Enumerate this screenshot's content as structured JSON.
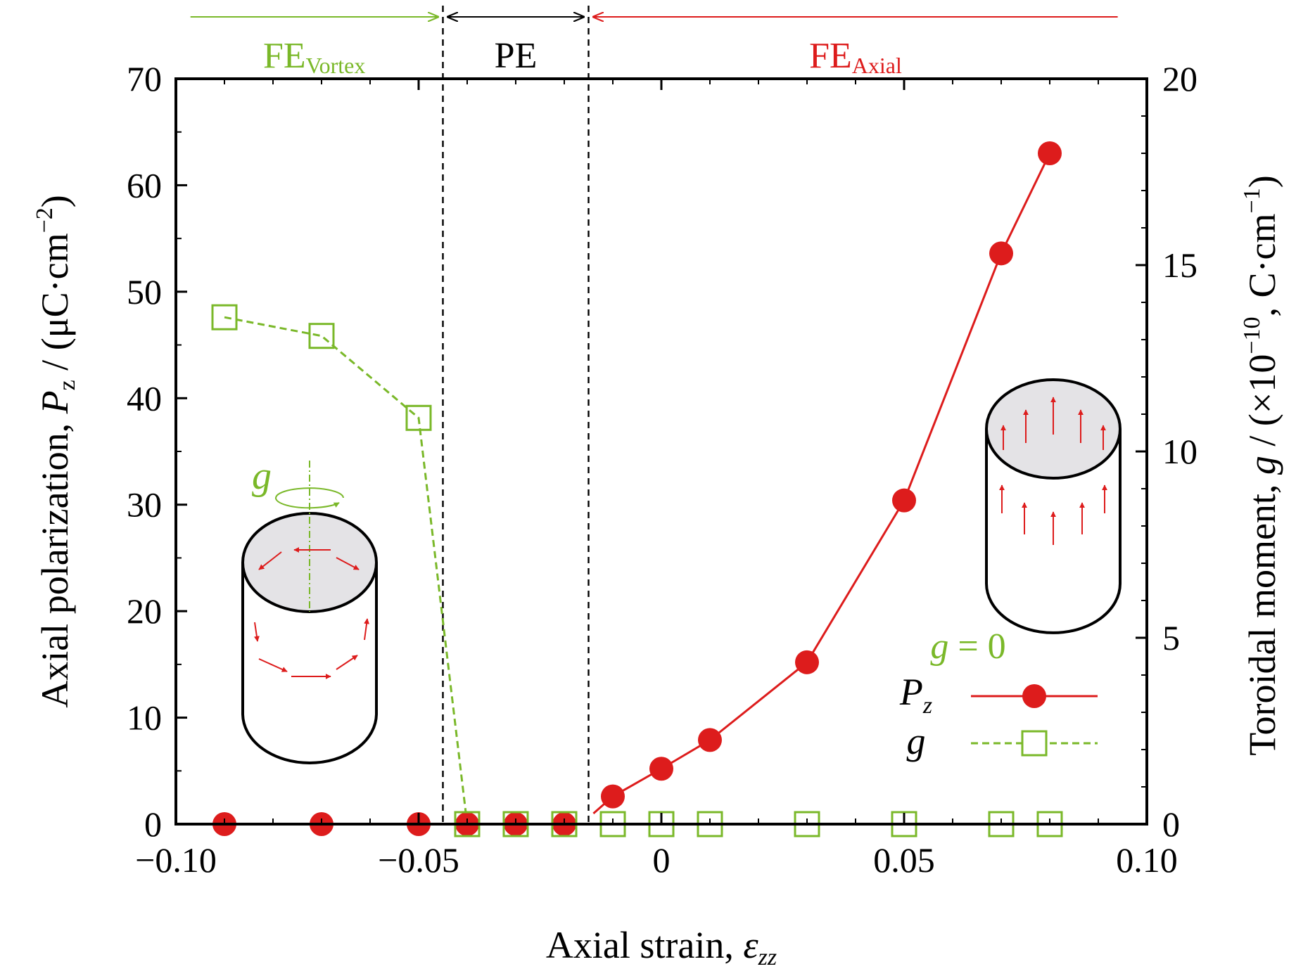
{
  "colors": {
    "red": "#dd1c1c",
    "green": "#7ab829",
    "black": "#000000",
    "cap_fill": "#e4e3e6"
  },
  "chart_data": {
    "type": "scatter",
    "title": "",
    "xlabel_text": "Axial strain, ",
    "xlabel_symbol": "ε",
    "xlabel_sub": "zz",
    "ylabel_text": "Axial polarization, ",
    "ylabel_symbol": "P",
    "ylabel_sub": "z",
    "ylabel_unit_pre": " / (μC·cm",
    "ylabel_unit_sup": "−2",
    "ylabel_unit_post": ")",
    "y2label_text": "Toroidal moment, ",
    "y2label_symbol": "g",
    "y2label_unit_pre": " / (×10",
    "y2label_unit_sup1": "−10",
    "y2label_unit_mid": ", C·cm",
    "y2label_unit_sup2": "−1",
    "y2label_unit_post": ")",
    "xlim": [
      -0.1,
      0.1
    ],
    "ylim": [
      0,
      70
    ],
    "y2lim": [
      0,
      20
    ],
    "xticks": [
      -0.1,
      -0.05,
      0,
      0.05,
      0.1
    ],
    "xtick_labels": [
      "−0.10",
      "−0.05",
      "0",
      "0.05",
      "0.10"
    ],
    "yticks": [
      0,
      10,
      20,
      30,
      40,
      50,
      60,
      70
    ],
    "ytick_labels": [
      "0",
      "10",
      "20",
      "30",
      "40",
      "50",
      "60",
      "70"
    ],
    "y2ticks": [
      0,
      5,
      10,
      15,
      20
    ],
    "y2tick_labels": [
      "0",
      "5",
      "10",
      "15",
      "20"
    ],
    "phase_boundaries": [
      -0.045,
      -0.015
    ],
    "phases": [
      {
        "label_main": "FE",
        "label_sub": "Vortex",
        "color": "#7ab829",
        "arrow": "right",
        "x_from": -0.097,
        "x_to": -0.046
      },
      {
        "label_main": "PE",
        "label_sub": "",
        "color": "#000000",
        "arrow": "both",
        "x_from": -0.044,
        "x_to": -0.016
      },
      {
        "label_main": "FE",
        "label_sub": "Axial",
        "color": "#dd1c1c",
        "arrow": "left",
        "x_from": -0.014,
        "x_to": 0.094
      }
    ],
    "series": [
      {
        "name": "P_z",
        "legend_symbol": "P",
        "legend_sub": "z",
        "axis": "left",
        "marker": "filled-circle",
        "line": "solid",
        "color": "#dd1c1c",
        "points": [
          {
            "x": -0.09,
            "y": 0
          },
          {
            "x": -0.07,
            "y": 0
          },
          {
            "x": -0.05,
            "y": 0
          },
          {
            "x": -0.04,
            "y": 0
          },
          {
            "x": -0.03,
            "y": 0
          },
          {
            "x": -0.02,
            "y": 0
          },
          {
            "x": -0.01,
            "y": 2.6
          },
          {
            "x": 0.0,
            "y": 5.2
          },
          {
            "x": 0.01,
            "y": 7.9
          },
          {
            "x": 0.03,
            "y": 15.2
          },
          {
            "x": 0.05,
            "y": 30.4
          },
          {
            "x": 0.07,
            "y": 53.6
          },
          {
            "x": 0.08,
            "y": 63.0
          }
        ],
        "line_points": [
          {
            "x": -0.014,
            "y": 1.0
          },
          {
            "x": -0.01,
            "y": 2.6
          },
          {
            "x": 0.0,
            "y": 5.2
          },
          {
            "x": 0.01,
            "y": 7.9
          },
          {
            "x": 0.03,
            "y": 15.2
          },
          {
            "x": 0.05,
            "y": 30.4
          },
          {
            "x": 0.07,
            "y": 53.6
          },
          {
            "x": 0.08,
            "y": 63.0
          }
        ]
      },
      {
        "name": "g",
        "legend_symbol": "g",
        "legend_sub": "",
        "axis": "right",
        "marker": "open-square",
        "line": "dashed",
        "color": "#7ab829",
        "points": [
          {
            "x": -0.09,
            "y": 13.6
          },
          {
            "x": -0.07,
            "y": 13.1
          },
          {
            "x": -0.05,
            "y": 10.9
          },
          {
            "x": -0.04,
            "y": 0
          },
          {
            "x": -0.03,
            "y": 0
          },
          {
            "x": -0.02,
            "y": 0
          },
          {
            "x": -0.01,
            "y": 0
          },
          {
            "x": 0.0,
            "y": 0
          },
          {
            "x": 0.01,
            "y": 0
          },
          {
            "x": 0.03,
            "y": 0
          },
          {
            "x": 0.05,
            "y": 0
          },
          {
            "x": 0.07,
            "y": 0
          },
          {
            "x": 0.08,
            "y": 0
          }
        ],
        "line_points": [
          {
            "x": -0.09,
            "y": 13.6
          },
          {
            "x": -0.07,
            "y": 13.1
          },
          {
            "x": -0.05,
            "y": 10.9
          },
          {
            "x": -0.04,
            "y": 0
          }
        ]
      }
    ],
    "legend_position": "bottom-right",
    "annotations": [
      {
        "text": "g",
        "color": "#7ab829",
        "where": "vortex cylinder axis label"
      },
      {
        "text": "g = 0",
        "color": "#7ab829",
        "where": "above legend"
      }
    ]
  }
}
